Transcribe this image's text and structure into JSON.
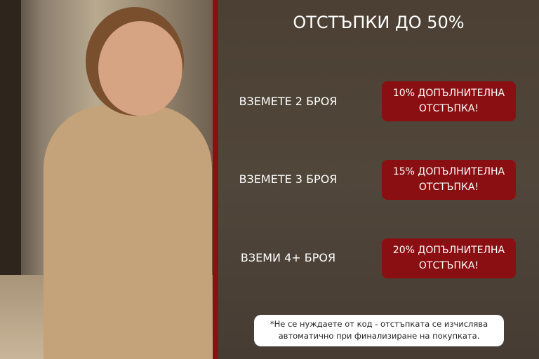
{
  "title": "ОТСТЪПКИ ДО 50%",
  "offers": [
    {
      "label": "ВЗЕМЕТЕ 2 БРОЯ",
      "badge_line1": "10% ДОПЪЛНИТЕЛНА",
      "badge_line2": "ОТСТЪПКА!"
    },
    {
      "label": "ВЗЕМЕТЕ 3 БРОЯ",
      "badge_line1": "15% ДОПЪЛНИТЕЛНА",
      "badge_line2": "ОТСТЪПКА!"
    },
    {
      "label": "ВЗЕМИ 4+ БРОЯ",
      "badge_line1": "20% ДОПЪЛНИТЕЛНА",
      "badge_line2": "ОТСТЪПКА!"
    }
  ],
  "note": {
    "line1": "*Не се нуждаете от код - отстъпката се изчислява",
    "line2": "автоматично при финализиране на покупката."
  },
  "colors": {
    "accent": "#8a0f12",
    "panel": "#4b4033"
  }
}
